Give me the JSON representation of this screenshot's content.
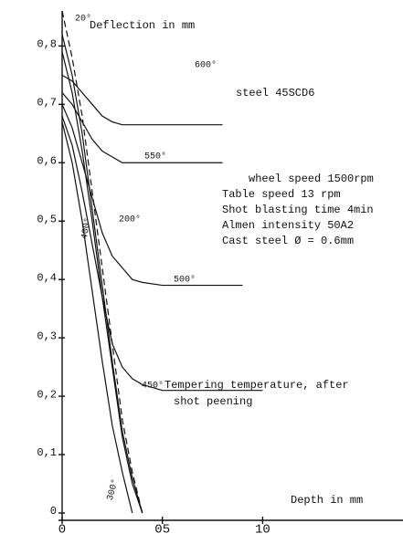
{
  "chart_data": {
    "type": "line",
    "y_label": "Deflection in mm",
    "x_label": "Depth in mm",
    "material": "steel 45SCD6",
    "conditions": [
      "wheel speed 1500rpm",
      "Table speed 13 rpm",
      "Shot blasting time 4min",
      "Almen intensity 50A2",
      "Cast steel Ø = 0.6mm"
    ],
    "note": [
      "Tempering temperature, after",
      "shot peening"
    ],
    "x": [
      0,
      0.05,
      0.1,
      0.15,
      0.2,
      0.25,
      0.3,
      0.35,
      0.4,
      0.5,
      0.6,
      0.7,
      0.8,
      0.9,
      1.0
    ],
    "series": [
      {
        "name": "600°",
        "color": "#111",
        "values": [
          0.75,
          0.74,
          0.72,
          0.7,
          0.68,
          0.67,
          0.665,
          0.665,
          0.665,
          0.665,
          0.665,
          0.665,
          0.665,
          null,
          null
        ]
      },
      {
        "name": "550°",
        "color": "#111",
        "values": [
          0.72,
          0.7,
          0.67,
          0.64,
          0.62,
          0.61,
          0.6,
          0.6,
          0.6,
          0.6,
          0.6,
          0.6,
          0.6,
          null,
          null
        ]
      },
      {
        "name": "500°",
        "color": "#111",
        "values": [
          0.7,
          0.66,
          0.6,
          0.54,
          0.48,
          0.44,
          0.42,
          0.4,
          0.395,
          0.39,
          0.39,
          0.39,
          0.39,
          0.39,
          null
        ]
      },
      {
        "name": "450°",
        "color": "#111",
        "values": [
          0.68,
          0.63,
          0.55,
          0.46,
          0.37,
          0.29,
          0.25,
          0.23,
          0.22,
          0.21,
          0.21,
          0.21,
          0.21,
          0.21,
          0.21
        ]
      },
      {
        "name": "400°",
        "color": "#111",
        "values": [
          0.67,
          0.6,
          0.5,
          0.38,
          0.26,
          0.15,
          0.07,
          0.0,
          null,
          null,
          null,
          null,
          null,
          null,
          null
        ]
      },
      {
        "name": "200°",
        "color": "#111",
        "values": [
          0.79,
          0.72,
          0.62,
          0.5,
          0.37,
          0.25,
          0.13,
          0.05,
          0.0,
          null,
          null,
          null,
          null,
          null,
          null
        ]
      },
      {
        "name": "300°",
        "color": "#111",
        "values": [
          0.82,
          0.75,
          0.65,
          0.52,
          0.39,
          0.26,
          0.14,
          0.06,
          0.0,
          null,
          null,
          null,
          null,
          null,
          null
        ]
      },
      {
        "name": "20°",
        "color": "#111",
        "dashed": true,
        "values": [
          0.86,
          0.78,
          0.68,
          0.55,
          0.42,
          0.29,
          0.16,
          0.07,
          0.0,
          null,
          null,
          null,
          null,
          null,
          null
        ]
      }
    ],
    "xlim": [
      0,
      1.7
    ],
    "ylim": [
      0,
      0.86
    ],
    "xticks": [
      0,
      {
        "value": 0.5,
        "label": "05"
      },
      {
        "value": 1.0,
        "label": "10"
      }
    ],
    "yticks": [
      0,
      {
        "value": 0.1,
        "label": "0,1"
      },
      {
        "value": 0.2,
        "label": "0,2"
      },
      {
        "value": 0.3,
        "label": "0,3"
      },
      {
        "value": 0.4,
        "label": "0,4"
      },
      {
        "value": 0.5,
        "label": "0,5"
      },
      {
        "value": 0.6,
        "label": "0,6"
      },
      {
        "value": 0.7,
        "label": "0,7"
      },
      {
        "value": 0.8,
        "label": "0,8"
      }
    ],
    "grid": false
  }
}
